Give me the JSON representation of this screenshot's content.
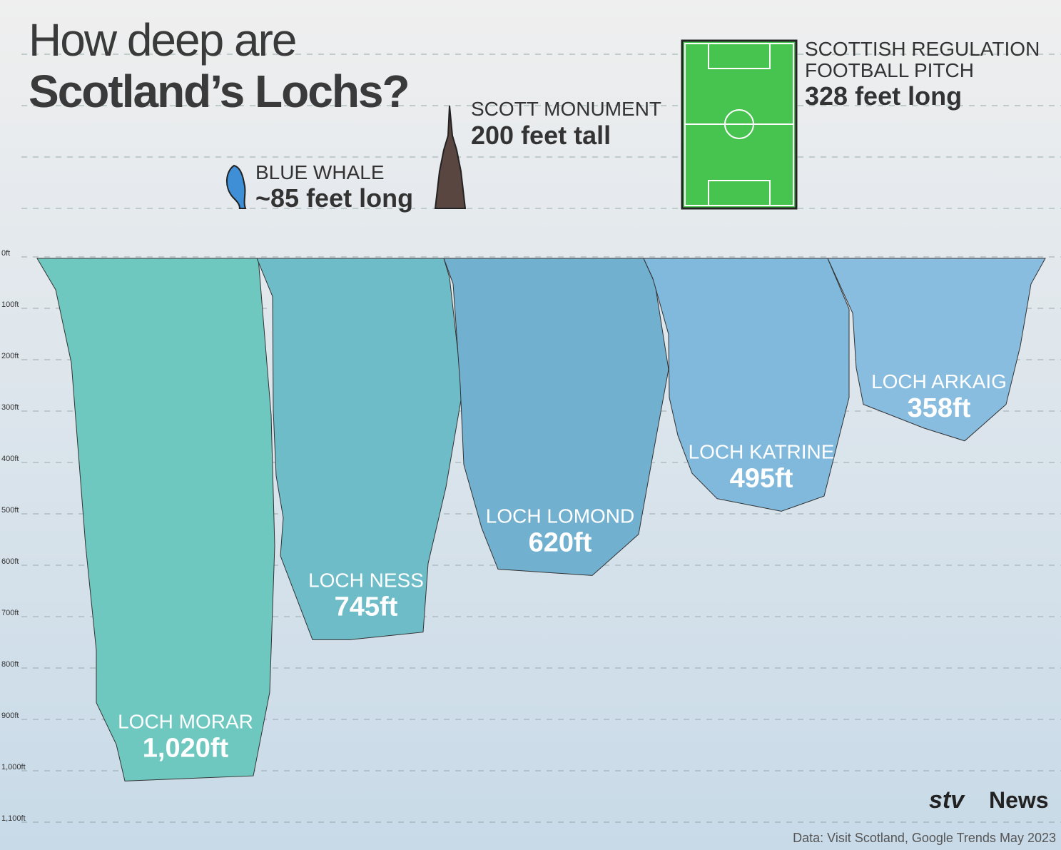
{
  "header": {
    "title_line1": "How deep are",
    "title_line2": "Scotland’s Lochs?"
  },
  "comparisons": [
    {
      "label": "BLUE WHALE",
      "size": "~85 feet long"
    },
    {
      "label": "SCOTT MONUMENT",
      "size": "200 feet tall"
    },
    {
      "label_line1": "SCOTTISH REGULATION",
      "label_line2": "FOOTBALL PITCH",
      "size": "328 feet long"
    }
  ],
  "chart_data": {
    "type": "loch",
    "categories": [
      "LOCH MORAR",
      "LOCH NESS",
      "LOCH LOMOND",
      "LOCH KATRINE",
      "LOCH ARKAIG"
    ],
    "values": [
      1020,
      745,
      620,
      495,
      358
    ],
    "value_labels": [
      "1,020ft",
      "745ft",
      "620ft",
      "495ft",
      "358ft"
    ],
    "colors": [
      "#6fc8bf",
      "#6ebcc8",
      "#72b0d0",
      "#80b9dc",
      "#88bde0"
    ],
    "ylim": [
      0,
      1100
    ],
    "yticks": [
      {
        "value": 0,
        "label": "0ft"
      },
      {
        "value": 100,
        "label": "100ft"
      },
      {
        "value": 200,
        "label": "200ft"
      },
      {
        "value": 300,
        "label": "300ft"
      },
      {
        "value": 400,
        "label": "400ft"
      },
      {
        "value": 500,
        "label": "500ft"
      },
      {
        "value": 600,
        "label": "600ft"
      },
      {
        "value": 700,
        "label": "700ft"
      },
      {
        "value": 800,
        "label": "800ft"
      },
      {
        "value": 900,
        "label": "900ft"
      },
      {
        "value": 1000,
        "label": "1,000ft"
      },
      {
        "value": 1100,
        "label": "1,100ft"
      }
    ],
    "grid": true
  },
  "footer": {
    "logo": "stv",
    "logo_text": "News",
    "source": "Data: Visit Scotland, Google Trends May 2023"
  }
}
